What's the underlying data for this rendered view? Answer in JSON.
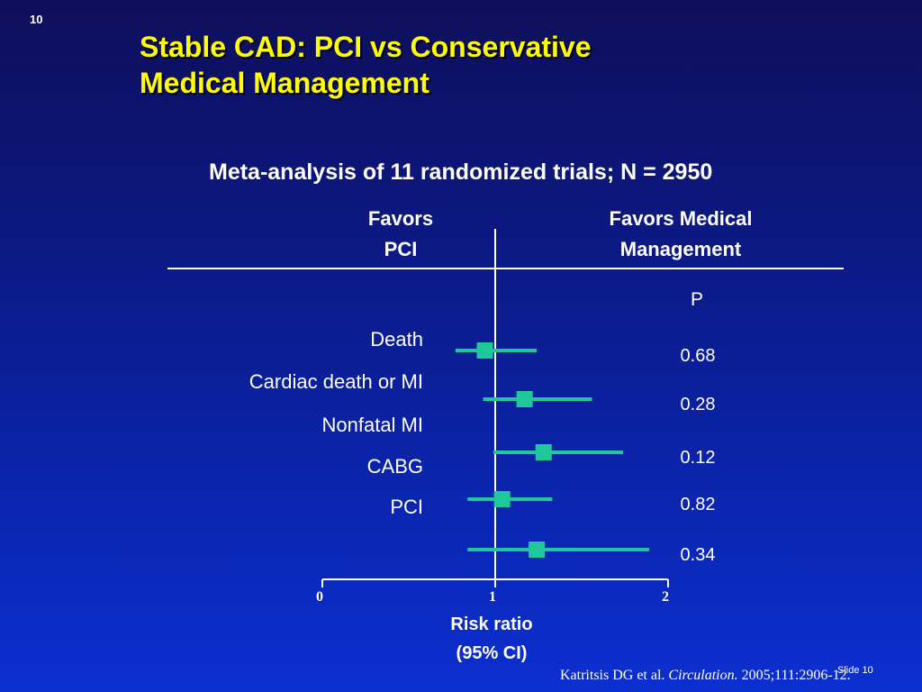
{
  "slide_number": "10",
  "title": {
    "line1": "Stable CAD: PCI vs Conservative",
    "line2": "Medical Management"
  },
  "subtitle": "Meta-analysis of 11 randomized trials; N = 2950",
  "header_left": {
    "line1": "Favors",
    "line2": "PCI"
  },
  "header_right": {
    "line1": "Favors Medical",
    "line2": "Management"
  },
  "p_header": "P",
  "colors": {
    "marker": "#1fc79a",
    "title": "#ffff00",
    "text": "#ffffff"
  },
  "chart_data": {
    "type": "forest",
    "xlabel_line1": "Risk ratio",
    "xlabel_line2": "(95% CI)",
    "xlim": [
      0,
      2
    ],
    "xticks": [
      "0",
      "1",
      "2"
    ],
    "reference_line": 1,
    "row_labels": [
      "Death",
      "Cardiac death or MI",
      "Nonfatal MI",
      "CABG",
      "PCI"
    ],
    "rows": [
      {
        "rr": 0.94,
        "lo": 0.77,
        "hi": 1.24,
        "p": "0.68"
      },
      {
        "rr": 1.17,
        "lo": 0.93,
        "hi": 1.56,
        "p": "0.28"
      },
      {
        "rr": 1.28,
        "lo": 0.99,
        "hi": 1.74,
        "p": "0.12"
      },
      {
        "rr": 1.04,
        "lo": 0.84,
        "hi": 1.33,
        "p": "0.82"
      },
      {
        "rr": 1.24,
        "lo": 0.84,
        "hi": 1.89,
        "p": "0.34"
      }
    ]
  },
  "citation": {
    "authors": "Katritsis DG et al. ",
    "journal": "Circulation.",
    "ref": " 2005;111:2906-12."
  },
  "slide_footer": "Slide 10"
}
